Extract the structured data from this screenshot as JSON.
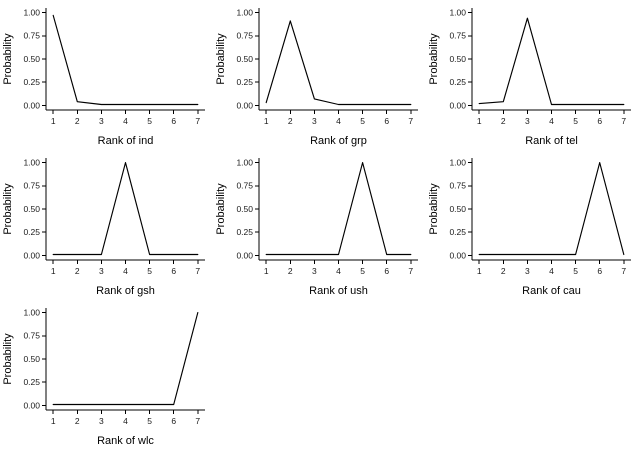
{
  "page": {
    "background": "#ffffff",
    "line_color": "#000000",
    "text_color": "#000000"
  },
  "chart_data": {
    "type": "line",
    "layout": {
      "columns": 3,
      "rows": 3,
      "grid": "off",
      "legend": "none",
      "theme": "classic"
    },
    "x": [
      1,
      2,
      3,
      4,
      5,
      6,
      7
    ],
    "xlim": [
      1,
      7
    ],
    "ylim": [
      0,
      1
    ],
    "y_ticks": [
      0,
      0.25,
      0.5,
      0.75,
      1
    ],
    "ylabel": "Probability",
    "charts": [
      {
        "xlabel": "Rank of ind",
        "values": [
          0.97,
          0.04,
          0.01,
          0.01,
          0.01,
          0.01,
          0.01
        ]
      },
      {
        "xlabel": "Rank of grp",
        "values": [
          0.03,
          0.91,
          0.07,
          0.01,
          0.01,
          0.01,
          0.01
        ]
      },
      {
        "xlabel": "Rank of tel",
        "values": [
          0.02,
          0.04,
          0.94,
          0.01,
          0.01,
          0.01,
          0.01
        ]
      },
      {
        "xlabel": "Rank of gsh",
        "values": [
          0.01,
          0.01,
          0.01,
          1.0,
          0.01,
          0.01,
          0.01
        ]
      },
      {
        "xlabel": "Rank of ush",
        "values": [
          0.01,
          0.01,
          0.01,
          0.01,
          1.0,
          0.01,
          0.01
        ]
      },
      {
        "xlabel": "Rank of cau",
        "values": [
          0.01,
          0.01,
          0.01,
          0.01,
          0.01,
          1.0,
          0.01
        ]
      },
      {
        "xlabel": "Rank of wlc",
        "values": [
          0.01,
          0.01,
          0.01,
          0.01,
          0.01,
          0.01,
          1.0
        ]
      }
    ]
  }
}
